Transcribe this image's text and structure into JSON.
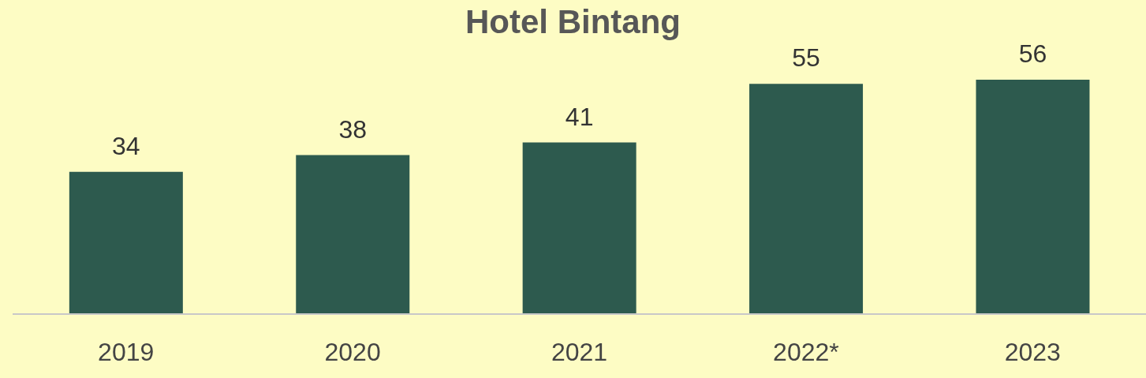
{
  "chart_data": {
    "type": "bar",
    "title": "Hotel Bintang",
    "categories": [
      "2019",
      "2020",
      "2021",
      "2022*",
      "2023"
    ],
    "values": [
      34,
      38,
      41,
      55,
      56
    ],
    "color": "#2d5a4e",
    "data_labels": true,
    "grid": false,
    "legend": false
  }
}
